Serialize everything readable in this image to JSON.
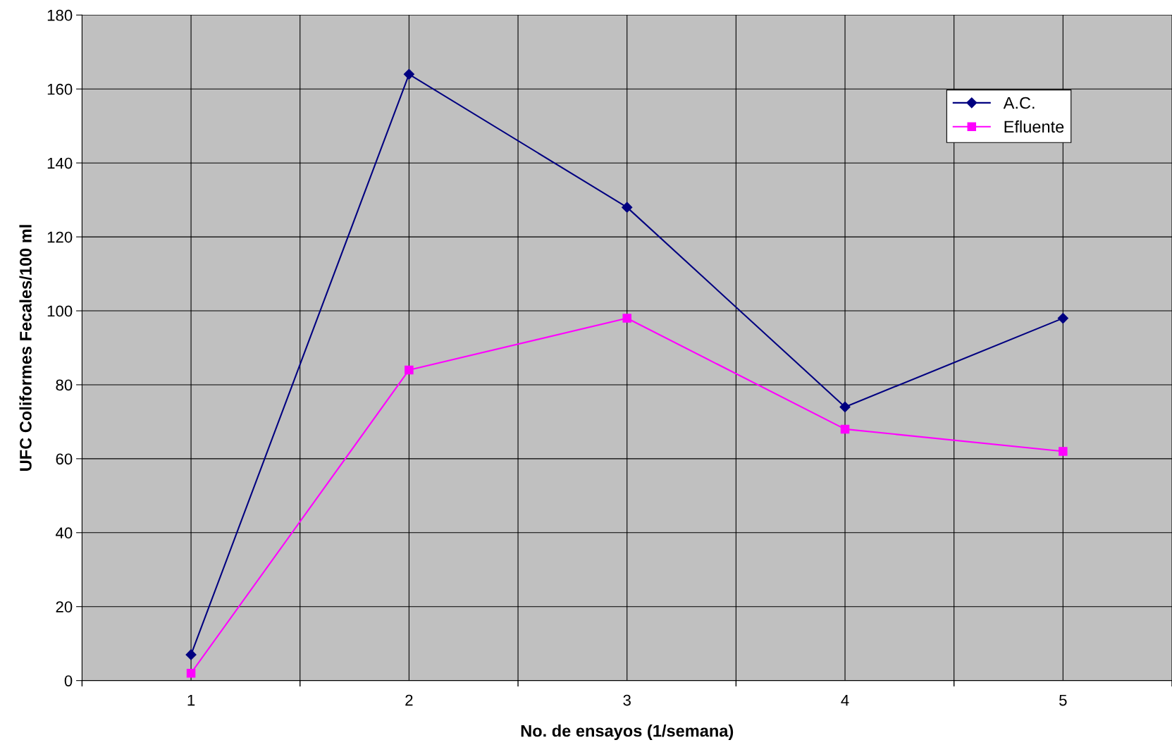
{
  "chart_data": {
    "type": "line",
    "xlabel": "No. de ensayos (1/semana)",
    "ylabel": "UFC Coliformes Fecales/100 ml",
    "categories": [
      "1",
      "2",
      "3",
      "4",
      "5"
    ],
    "series": [
      {
        "name": "A.C.",
        "color": "#000080",
        "marker": "diamond",
        "values": [
          7,
          164,
          128,
          74,
          98
        ]
      },
      {
        "name": "Efluente",
        "color": "#ff00ff",
        "marker": "square",
        "values": [
          2,
          84,
          98,
          68,
          62
        ]
      }
    ],
    "ylim": [
      0,
      180
    ],
    "yticks": [
      0,
      20,
      40,
      60,
      80,
      100,
      120,
      140,
      160,
      180
    ],
    "grid": true,
    "legend": "top right",
    "line_style": "solid"
  }
}
